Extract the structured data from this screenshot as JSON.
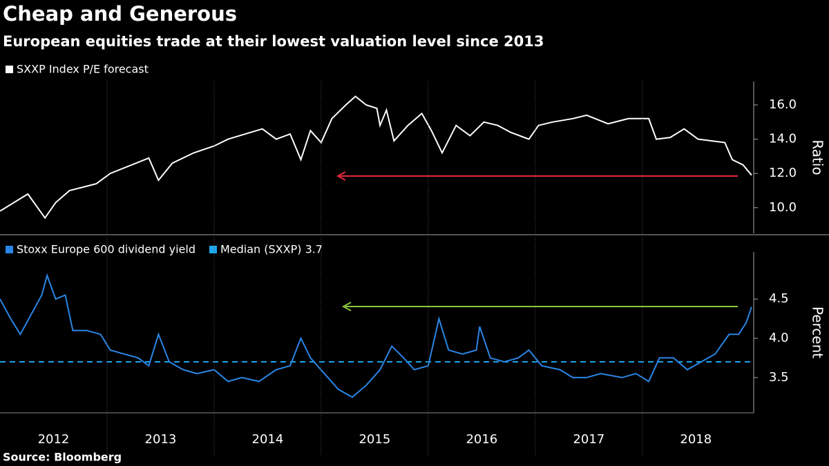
{
  "chart_data": [
    {
      "type": "line",
      "title": "Cheap and Generous",
      "subtitle": "European equities trade at their lowest valuation level since 2013",
      "ylabel": "Ratio",
      "xlim": [
        2012,
        2019.04
      ],
      "ylim": [
        8.5,
        17.37
      ],
      "yticks": [
        {
          "value": 10,
          "label": "10.0"
        },
        {
          "value": 12,
          "label": "12.0"
        },
        {
          "value": 14,
          "label": "14.0"
        },
        {
          "value": 16,
          "label": "16.0"
        }
      ],
      "series": [
        {
          "name": "SXXP Index P/E forecast",
          "color": "#ffffff",
          "x": [
            2012.0,
            2012.26,
            2012.42,
            2012.52,
            2012.65,
            2012.9,
            2013.03,
            2013.39,
            2013.48,
            2013.61,
            2013.81,
            2014.0,
            2014.13,
            2014.45,
            2014.58,
            2014.71,
            2014.81,
            2014.9,
            2015.0,
            2015.1,
            2015.23,
            2015.32,
            2015.42,
            2015.52,
            2015.55,
            2015.61,
            2015.68,
            2015.81,
            2015.94,
            2016.03,
            2016.13,
            2016.26,
            2016.39,
            2016.52,
            2016.65,
            2016.77,
            2016.94,
            2017.03,
            2017.16,
            2017.35,
            2017.48,
            2017.68,
            2017.87,
            2018.06,
            2018.13,
            2018.26,
            2018.39,
            2018.52,
            2018.65,
            2018.77,
            2018.84,
            2018.94,
            2019.02
          ],
          "values": [
            9.8,
            10.8,
            9.4,
            10.3,
            11,
            11.4,
            12,
            12.9,
            11.6,
            12.6,
            13.2,
            13.6,
            14.0,
            14.6,
            14.0,
            14.3,
            12.8,
            14.5,
            13.8,
            15.2,
            16.0,
            16.5,
            16.0,
            15.8,
            14.8,
            15.7,
            13.9,
            14.8,
            15.5,
            14.5,
            13.2,
            14.8,
            14.2,
            15.0,
            14.8,
            14.4,
            14.0,
            14.8,
            15.0,
            15.2,
            15.4,
            14.9,
            15.2,
            15.2,
            14.0,
            14.1,
            14.6,
            14.0,
            13.9,
            13.8,
            12.8,
            12.5,
            11.9
          ]
        }
      ]
    },
    {
      "type": "line",
      "ylabel": "Percent",
      "xlim": [
        2012,
        2019.04
      ],
      "ylim": [
        3.05,
        5.1
      ],
      "yticks": [
        3.5,
        {
          "value": 4,
          "label": "4.0"
        },
        4.5
      ],
      "xticks": [
        {
          "value": 2012.5,
          "label": "2012"
        },
        {
          "value": 2013.5,
          "label": "2013"
        },
        {
          "value": 2014.5,
          "label": "2014"
        },
        {
          "value": 2015.5,
          "label": "2015"
        },
        {
          "value": 2016.5,
          "label": "2016"
        },
        {
          "value": 2017.5,
          "label": "2017"
        },
        {
          "value": 2018.5,
          "label": "2018"
        }
      ],
      "x_separators": [
        2013,
        2014,
        2015,
        2016,
        2017,
        2018
      ],
      "median": {
        "name": "Median (SXXP) 3.7",
        "value": 3.7,
        "color": "#1fa8f0"
      },
      "series": [
        {
          "name": "Stoxx Europe 600 dividend yield",
          "color": "#2a86e6",
          "x": [
            2012.0,
            2012.1,
            2012.19,
            2012.29,
            2012.39,
            2012.44,
            2012.52,
            2012.61,
            2012.68,
            2012.81,
            2012.94,
            2013.03,
            2013.16,
            2013.29,
            2013.39,
            2013.48,
            2013.58,
            2013.71,
            2013.84,
            2014.0,
            2014.13,
            2014.26,
            2014.42,
            2014.58,
            2014.71,
            2014.81,
            2014.9,
            2015.03,
            2015.16,
            2015.29,
            2015.42,
            2015.55,
            2015.66,
            2015.77,
            2015.87,
            2016.0,
            2016.1,
            2016.19,
            2016.32,
            2016.45,
            2016.48,
            2016.58,
            2016.71,
            2016.84,
            2016.94,
            2017.06,
            2017.23,
            2017.35,
            2017.48,
            2017.61,
            2017.81,
            2017.94,
            2018.06,
            2018.16,
            2018.29,
            2018.42,
            2018.55,
            2018.68,
            2018.81,
            2018.9,
            2018.97,
            2019.02
          ],
          "values": [
            4.5,
            4.25,
            4.05,
            4.3,
            4.55,
            4.8,
            4.5,
            4.55,
            4.1,
            4.1,
            4.05,
            3.85,
            3.8,
            3.75,
            3.65,
            4.05,
            3.7,
            3.6,
            3.55,
            3.6,
            3.45,
            3.5,
            3.45,
            3.6,
            3.65,
            4.0,
            3.75,
            3.55,
            3.35,
            3.25,
            3.4,
            3.6,
            3.9,
            3.75,
            3.6,
            3.65,
            4.25,
            3.85,
            3.8,
            3.85,
            4.15,
            3.75,
            3.7,
            3.75,
            3.85,
            3.65,
            3.6,
            3.5,
            3.5,
            3.55,
            3.5,
            3.55,
            3.45,
            3.75,
            3.75,
            3.6,
            3.7,
            3.8,
            4.05,
            4.05,
            4.2,
            4.4
          ]
        }
      ]
    }
  ],
  "source": "Source: Bloomberg"
}
